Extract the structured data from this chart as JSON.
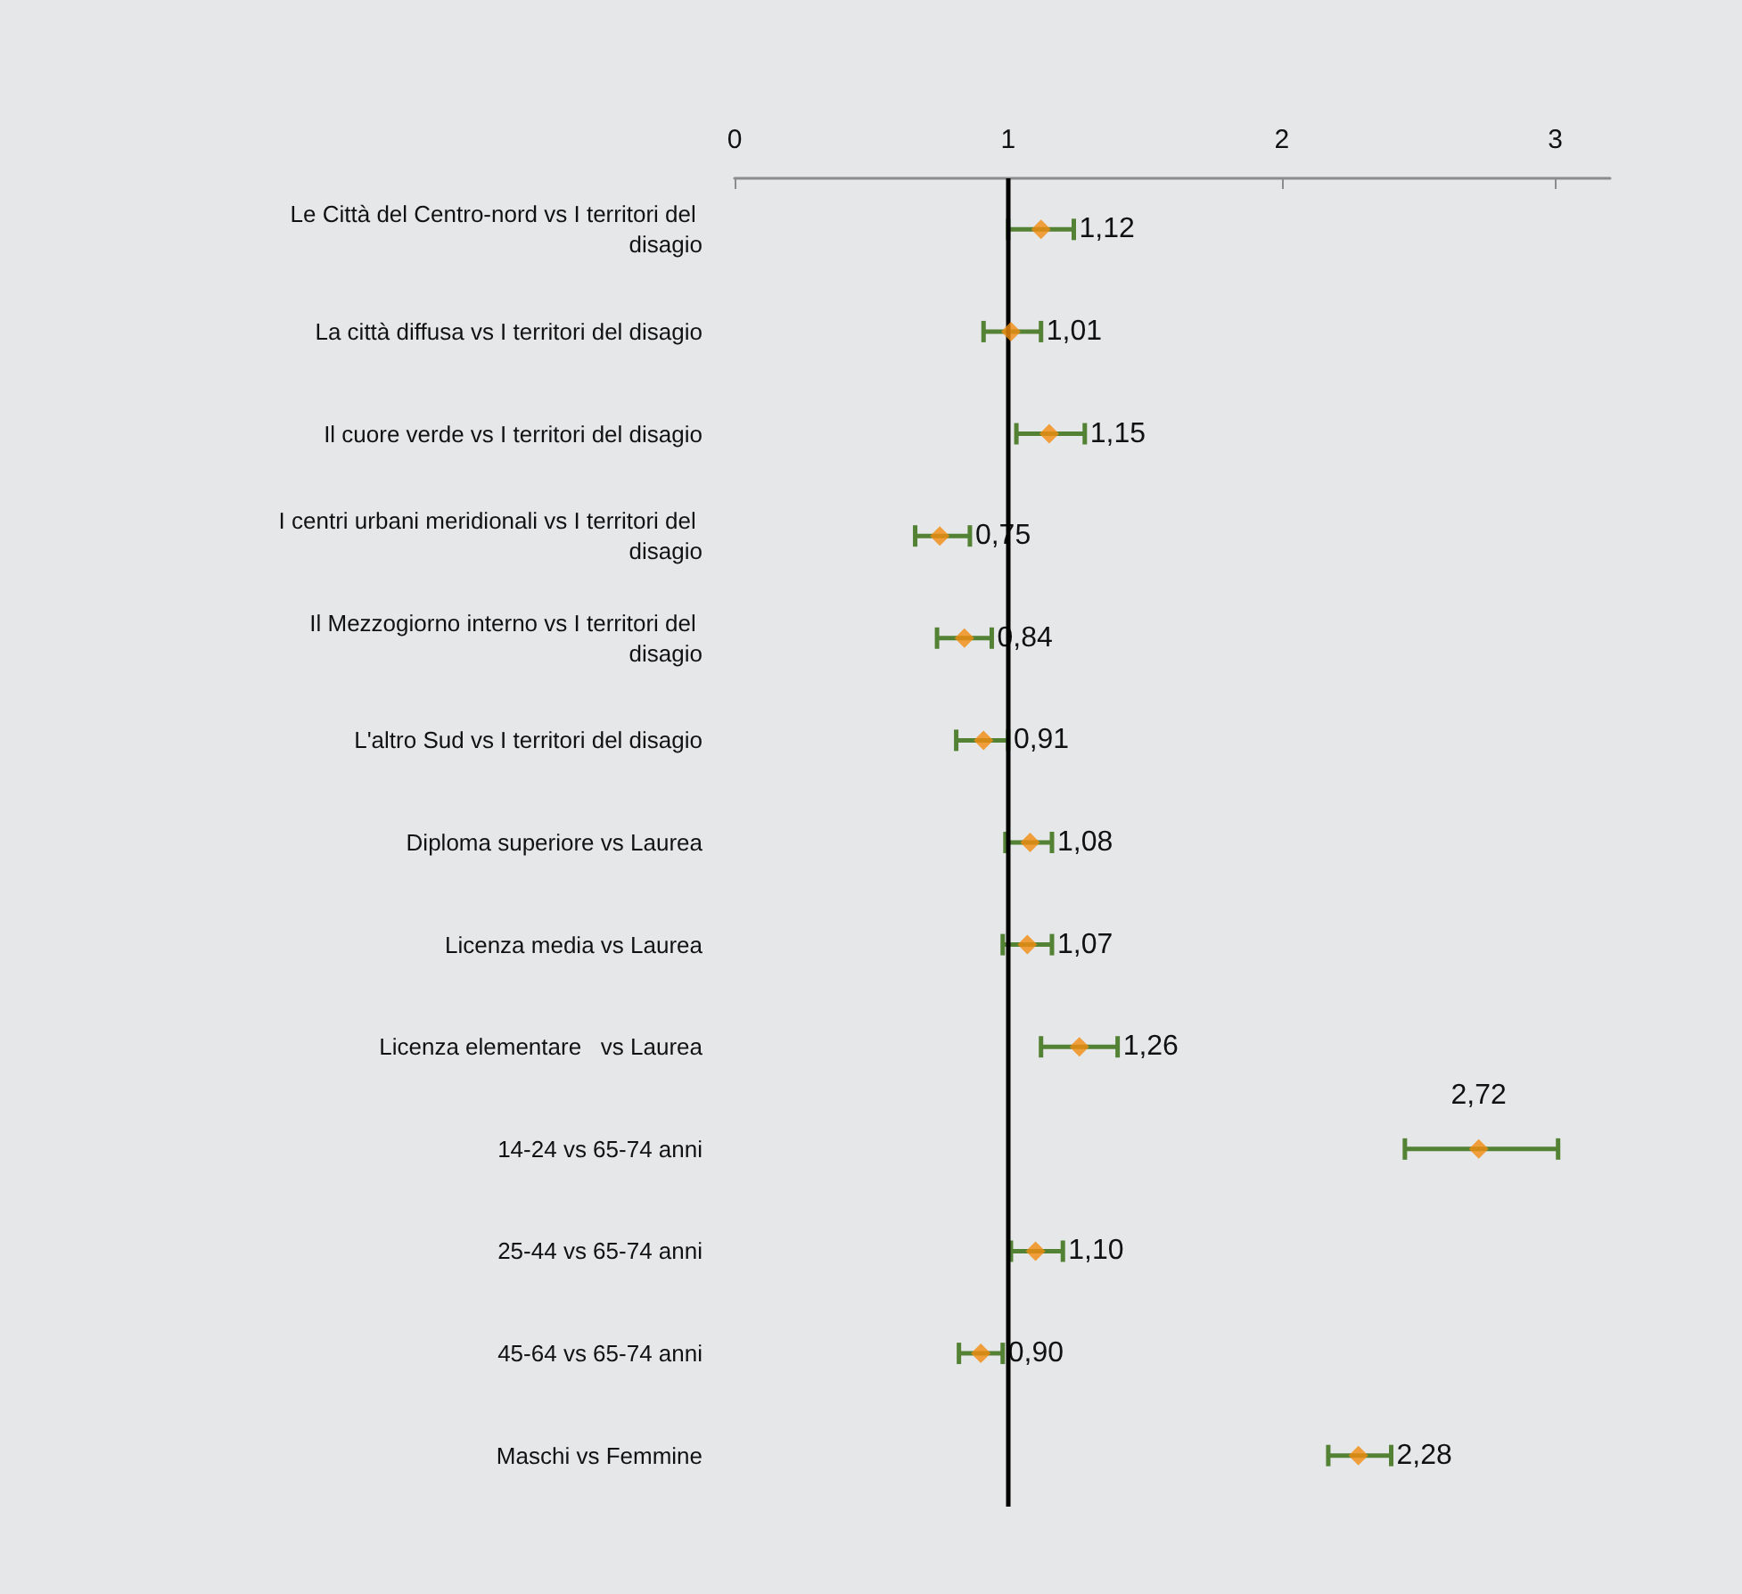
{
  "chart_data": {
    "type": "scatter",
    "orientation": "horizontal",
    "categories": [
      "Le Città del Centro-nord vs I territori del disagio",
      "La città diffusa vs I territori del disagio",
      "Il cuore verde vs I territori del disagio",
      "I centri urbani meridionali vs I territori del disagio",
      "Il Mezzogiorno interno vs I territori del disagio",
      "L'altro Sud vs I territori del disagio",
      "Diploma superiore vs Laurea",
      "Licenza media vs Laurea",
      "Licenza elementare   vs Laurea",
      "14-24 vs 65-74 anni",
      "25-44 vs 65-74 anni",
      "45-64 vs 65-74 anni",
      "Maschi vs Femmine"
    ],
    "series": [
      {
        "color": "#f28c0f",
        "values": [
          1.12,
          1.01,
          1.15,
          0.75,
          0.84,
          0.91,
          1.08,
          1.07,
          1.26,
          2.72,
          1.1,
          0.9,
          2.28
        ],
        "errors": [
          [
            1.0,
            1.24
          ],
          [
            0.91,
            1.12
          ],
          [
            1.03,
            1.28
          ],
          [
            0.66,
            0.86
          ],
          [
            0.74,
            0.94
          ],
          [
            0.81,
            1.0
          ],
          [
            0.99,
            1.16
          ],
          [
            0.98,
            1.16
          ],
          [
            1.12,
            1.4
          ],
          [
            2.45,
            3.01
          ],
          [
            1.01,
            1.2
          ],
          [
            0.82,
            0.98
          ],
          [
            2.17,
            2.4
          ]
        ],
        "value_labels": [
          "1,12",
          "1,01",
          "1,15",
          "0,75",
          "0,84",
          "0,91",
          "1,08",
          "1,07",
          "1,26",
          "2,72",
          "1,10",
          "0,90",
          "2,28"
        ]
      }
    ],
    "xlim": [
      0,
      3.2
    ],
    "xticks": [
      0,
      1,
      2,
      3
    ],
    "ref_lines": [
      {
        "axis": "x",
        "value": 1,
        "color": "#000000"
      }
    ],
    "marker": "diamond"
  }
}
